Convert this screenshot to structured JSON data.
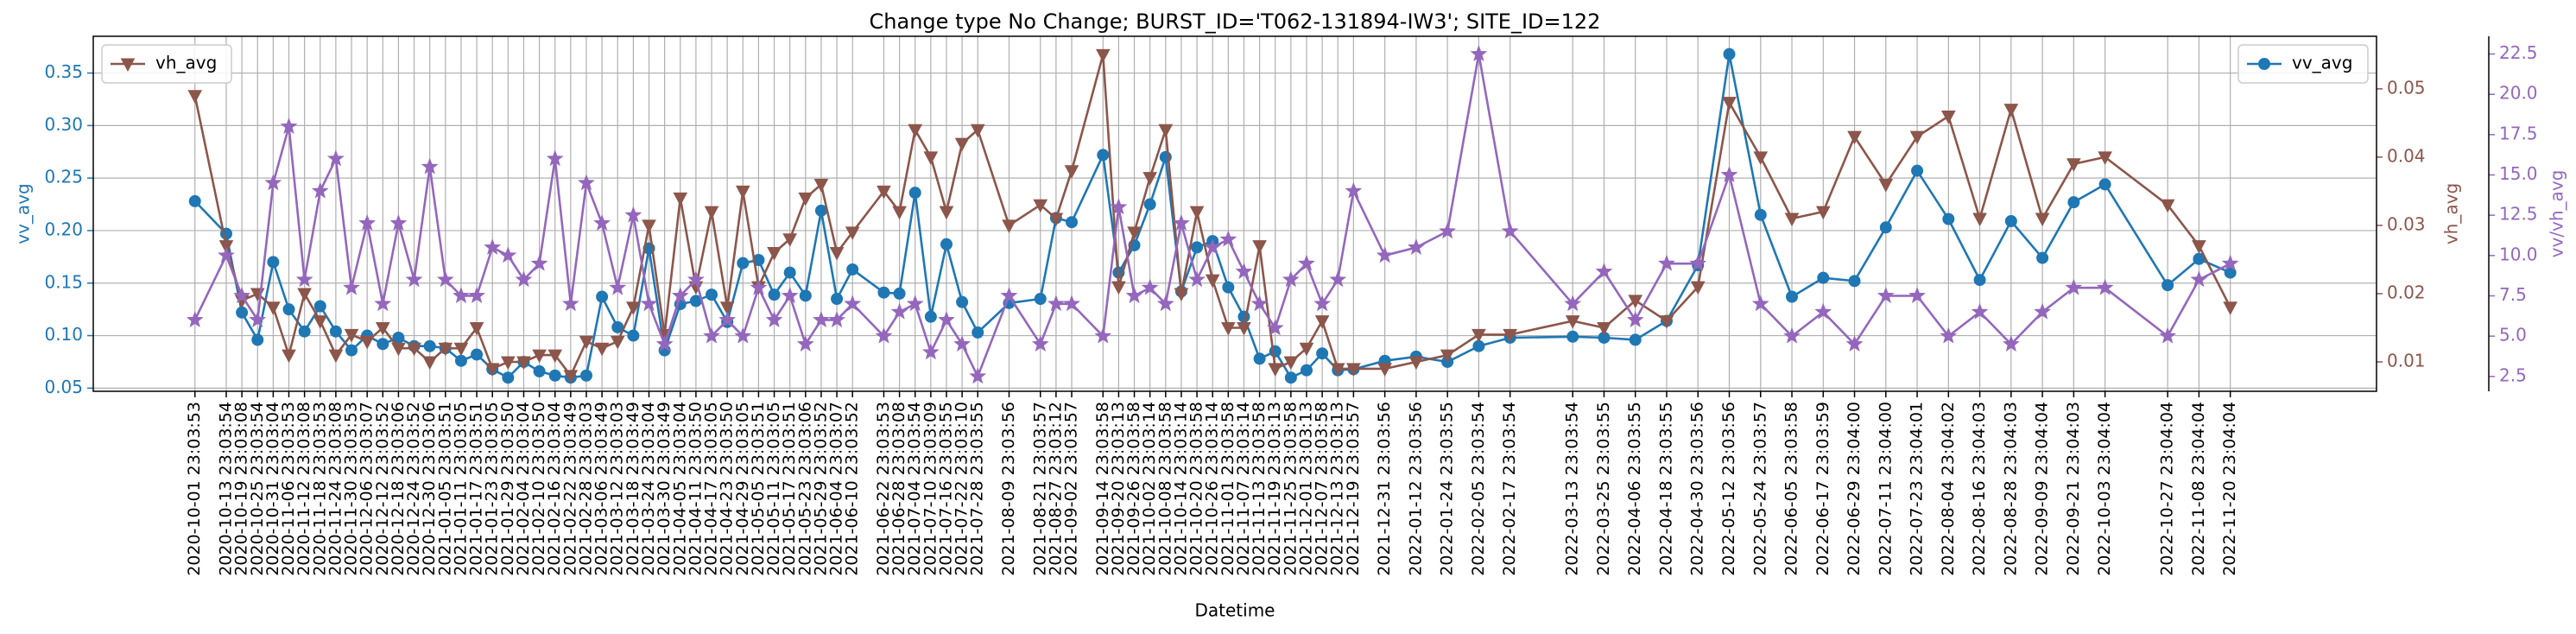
{
  "chart_data": {
    "type": "line",
    "title": "Change type No Change; BURST_ID='T062-131894-IW3'; SITE_ID=122",
    "xlabel": "Datetime",
    "ylabel": "vv_avg",
    "y2label": "vh_avg",
    "y3label": "vv/vh_avg",
    "x": [
      "2020-10-01 23:03:53",
      "2020-10-13 23:03:54",
      "2020-10-19 23:03:08",
      "2020-10-25 23:03:54",
      "2020-10-31 23:03:04",
      "2020-11-06 23:03:53",
      "2020-11-12 23:03:08",
      "2020-11-18 23:03:53",
      "2020-11-24 23:03:08",
      "2020-11-30 23:03:53",
      "2020-12-06 23:03:07",
      "2020-12-12 23:03:52",
      "2020-12-18 23:03:06",
      "2020-12-24 23:03:52",
      "2020-12-30 23:03:06",
      "2021-01-05 23:03:51",
      "2021-01-11 23:03:05",
      "2021-01-17 23:03:51",
      "2021-01-23 23:03:05",
      "2021-01-29 23:03:50",
      "2021-02-04 23:03:04",
      "2021-02-10 23:03:50",
      "2021-02-16 23:03:04",
      "2021-02-22 23:03:49",
      "2021-02-28 23:03:03",
      "2021-03-06 23:03:49",
      "2021-03-12 23:03:03",
      "2021-03-18 23:03:49",
      "2021-03-24 23:03:04",
      "2021-03-30 23:03:49",
      "2021-04-05 23:03:04",
      "2021-04-11 23:03:50",
      "2021-04-17 23:03:05",
      "2021-04-23 23:03:50",
      "2021-04-29 23:03:05",
      "2021-05-05 23:03:51",
      "2021-05-11 23:03:05",
      "2021-05-17 23:03:51",
      "2021-05-23 23:03:06",
      "2021-05-29 23:03:52",
      "2021-06-04 23:03:07",
      "2021-06-10 23:03:52",
      "2021-06-22 23:03:53",
      "2021-06-28 23:03:08",
      "2021-07-04 23:03:54",
      "2021-07-10 23:03:09",
      "2021-07-16 23:03:55",
      "2021-07-22 23:03:10",
      "2021-07-28 23:03:55",
      "2021-08-09 23:03:56",
      "2021-08-21 23:03:57",
      "2021-08-27 23:03:12",
      "2021-09-02 23:03:57",
      "2021-09-14 23:03:58",
      "2021-09-20 23:03:13",
      "2021-09-26 23:03:58",
      "2021-10-02 23:03:14",
      "2021-10-08 23:03:58",
      "2021-10-14 23:03:14",
      "2021-10-20 23:03:58",
      "2021-10-26 23:03:14",
      "2021-11-01 23:03:58",
      "2021-11-07 23:03:14",
      "2021-11-13 23:03:58",
      "2021-11-19 23:03:13",
      "2021-11-25 23:03:58",
      "2021-12-01 23:03:13",
      "2021-12-07 23:03:58",
      "2021-12-13 23:03:13",
      "2021-12-19 23:03:57",
      "2021-12-31 23:03:56",
      "2022-01-12 23:03:56",
      "2022-01-24 23:03:55",
      "2022-02-05 23:03:54",
      "2022-02-17 23:03:54",
      "2022-03-13 23:03:54",
      "2022-03-25 23:03:55",
      "2022-04-06 23:03:55",
      "2022-04-18 23:03:55",
      "2022-04-30 23:03:56",
      "2022-05-12 23:03:56",
      "2022-05-24 23:03:57",
      "2022-06-05 23:03:58",
      "2022-06-17 23:03:59",
      "2022-06-29 23:04:00",
      "2022-07-11 23:04:00",
      "2022-07-23 23:04:01",
      "2022-08-04 23:04:02",
      "2022-08-16 23:04:03",
      "2022-08-28 23:04:03",
      "2022-09-09 23:04:04",
      "2022-09-21 23:04:03",
      "2022-10-03 23:04:04",
      "2022-10-27 23:04:04",
      "2022-11-08 23:04:04",
      "2022-11-20 23:04:04"
    ],
    "xlim": [
      "2020-08-24",
      "2023-01-16"
    ],
    "ylim": [
      0.047,
      0.385
    ],
    "yticks": [
      0.05,
      {
        "value": 0.1,
        "label": "0.10"
      },
      0.15,
      {
        "value": 0.2,
        "label": "0.20"
      },
      0.25,
      {
        "value": 0.3,
        "label": "0.30"
      },
      0.35
    ],
    "y2lim": [
      0.0057,
      0.0577
    ],
    "y2ticks": [
      0.01,
      0.02,
      0.03,
      0.04,
      0.05
    ],
    "y3lim": [
      1.58,
      23.6
    ],
    "y3ticks": [
      2.5,
      {
        "value": 5,
        "label": "5.0"
      },
      7.5,
      {
        "value": 10,
        "label": "10.0"
      },
      12.5,
      {
        "value": 15,
        "label": "15.0"
      },
      17.5,
      {
        "value": 20,
        "label": "20.0"
      },
      22.5
    ],
    "grid": true,
    "legend": {
      "y": "upper right",
      "y2": "upper left"
    },
    "series": [
      {
        "name": "vv_avg",
        "color": "#1f77b4",
        "axis": "y",
        "marker": "circle",
        "values": [
          0.228,
          0.197,
          0.122,
          0.096,
          0.17,
          0.125,
          0.104,
          0.128,
          0.104,
          0.086,
          0.1,
          0.092,
          0.098,
          0.09,
          0.09,
          0.088,
          0.076,
          0.082,
          0.068,
          0.06,
          0.075,
          0.066,
          0.062,
          0.06,
          0.062,
          0.137,
          0.108,
          0.1,
          0.183,
          0.086,
          0.13,
          0.133,
          0.139,
          0.113,
          0.169,
          0.172,
          0.139,
          0.16,
          0.138,
          0.219,
          0.135,
          0.163,
          0.141,
          0.14,
          0.236,
          0.118,
          0.187,
          0.132,
          0.103,
          0.131,
          0.135,
          0.212,
          0.208,
          0.272,
          0.16,
          0.186,
          0.225,
          0.27,
          0.142,
          0.184,
          0.19,
          0.146,
          0.118,
          0.078,
          0.085,
          0.06,
          0.067,
          0.083,
          0.067,
          0.068,
          0.076,
          0.08,
          0.075,
          0.09,
          0.098,
          0.099,
          0.098,
          0.096,
          0.114,
          0.167,
          0.368,
          0.215,
          0.137,
          0.155,
          0.152,
          0.203,
          0.257,
          0.211,
          0.153,
          0.209,
          0.174,
          0.227,
          0.244,
          0.148,
          0.173,
          0.16
        ]
      },
      {
        "name": "vh_avg",
        "color": "#8c564b",
        "axis": "y2",
        "marker": "triangle",
        "values": [
          0.049,
          0.027,
          0.019,
          0.02,
          0.018,
          0.011,
          0.02,
          0.016,
          0.011,
          0.014,
          0.013,
          0.015,
          0.012,
          0.012,
          0.01,
          0.012,
          0.012,
          0.015,
          0.009,
          0.01,
          0.01,
          0.011,
          0.011,
          0.008,
          0.013,
          0.012,
          0.013,
          0.018,
          0.03,
          0.014,
          0.034,
          0.021,
          0.032,
          0.018,
          0.035,
          0.021,
          0.026,
          0.028,
          0.034,
          0.036,
          0.026,
          0.029,
          0.035,
          0.032,
          0.044,
          0.04,
          0.032,
          0.042,
          0.044,
          0.03,
          0.033,
          0.031,
          0.038,
          0.055,
          0.021,
          0.029,
          0.037,
          0.044,
          0.02,
          0.032,
          0.022,
          0.015,
          0.015,
          0.027,
          0.009,
          0.01,
          0.012,
          0.016,
          0.009,
          0.009,
          0.009,
          0.01,
          0.011,
          0.014,
          0.014,
          0.016,
          0.015,
          0.019,
          0.016,
          0.021,
          0.048,
          0.04,
          0.031,
          0.032,
          0.043,
          0.036,
          0.043,
          0.046,
          0.031,
          0.047,
          0.031,
          0.039,
          0.04,
          0.033,
          0.027,
          0.018
        ]
      },
      {
        "name": "vv/vh_avg",
        "color": "#9467bd",
        "axis": "y3",
        "marker": "star",
        "values": [
          6.0,
          10.0,
          7.5,
          6.0,
          14.5,
          18.0,
          8.5,
          14.0,
          16.0,
          8.0,
          12.0,
          7.0,
          12.0,
          8.5,
          15.5,
          8.5,
          7.5,
          7.5,
          10.5,
          10.0,
          8.5,
          9.5,
          16.0,
          7.0,
          14.5,
          12.0,
          8.0,
          12.5,
          7.0,
          4.5,
          7.5,
          8.5,
          5.0,
          6.0,
          5.0,
          8.0,
          6.0,
          7.5,
          4.5,
          6.0,
          6.0,
          7.0,
          5.0,
          6.5,
          7.0,
          4.0,
          6.0,
          4.5,
          2.5,
          7.5,
          4.5,
          7.0,
          7.0,
          5.0,
          13.0,
          7.5,
          8.0,
          7.0,
          12.0,
          8.5,
          10.5,
          11.0,
          9.0,
          7.0,
          5.5,
          8.5,
          9.5,
          7.0,
          8.5,
          14.0,
          10.0,
          10.5,
          11.5,
          22.5,
          11.5,
          7.0,
          9.0,
          6.0,
          9.5,
          9.5,
          15.0,
          7.0,
          5.0,
          6.5,
          4.5,
          7.5,
          7.5,
          5.0,
          6.5,
          4.5,
          6.5,
          8.0,
          8.0,
          5.0,
          8.5,
          9.5
        ]
      }
    ]
  }
}
